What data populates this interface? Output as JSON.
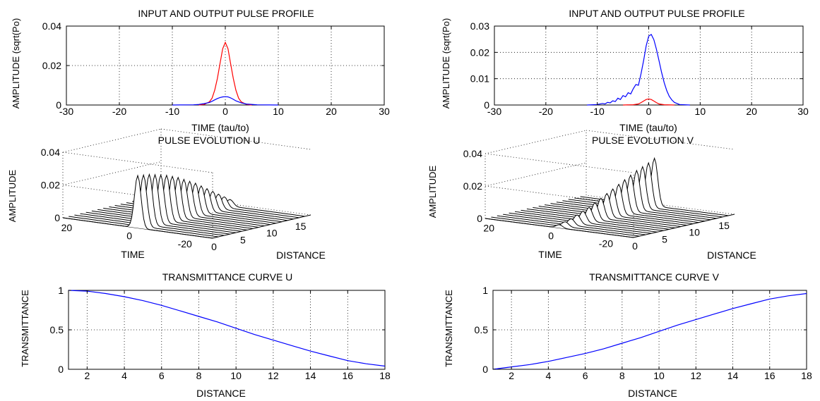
{
  "chart_data": [
    {
      "type": "line",
      "title": "INPUT AND OUTPUT PULSE PROFILE",
      "xlabel": "TIME (tau/to)",
      "ylabel": "AMPLITUDE (sqrt(Po)",
      "xlim": [
        -30,
        30
      ],
      "ylim": [
        0,
        0.04
      ],
      "xticks": [
        -30,
        -20,
        -10,
        0,
        10,
        20,
        30
      ],
      "xtick_labels": [
        "-30",
        "-20",
        "-10",
        "0",
        "10",
        "20",
        "30"
      ],
      "yticks": [
        0,
        0.02,
        0.04
      ],
      "ytick_labels": [
        "0",
        "0.02",
        "0.04"
      ],
      "grid": true,
      "series": [
        {
          "color": "#ff0000",
          "x": [
            -5,
            -4,
            -3,
            -2.5,
            -2,
            -1.5,
            -1,
            -0.5,
            0,
            0.5,
            1,
            1.5,
            2,
            2.5,
            3,
            4,
            5
          ],
          "values": [
            0,
            0.0003,
            0.0016,
            0.0035,
            0.0075,
            0.0135,
            0.021,
            0.0285,
            0.0317,
            0.0285,
            0.021,
            0.0135,
            0.0075,
            0.0035,
            0.0016,
            0.0003,
            0
          ]
        },
        {
          "color": "#0000ff",
          "x": [
            -10,
            -6,
            -5,
            -4,
            -3,
            -2.5,
            -2,
            -1.5,
            -1,
            -0.5,
            0,
            0.5,
            1,
            1.5,
            2,
            3,
            4,
            6,
            10
          ],
          "values": [
            0,
            0.0001,
            0.0003,
            0.0007,
            0.0013,
            0.0019,
            0.0026,
            0.0033,
            0.0038,
            0.0041,
            0.0042,
            0.0041,
            0.0036,
            0.0029,
            0.0021,
            0.0011,
            0.0005,
            0.0001,
            0
          ]
        }
      ]
    },
    {
      "type": "line",
      "title": "INPUT AND OUTPUT PULSE PROFILE",
      "xlabel": "TIME (tau/to)",
      "ylabel": "AMPLITUDE (sqrt(Po)",
      "xlim": [
        -30,
        30
      ],
      "ylim": [
        0,
        0.03
      ],
      "xticks": [
        -30,
        -20,
        -10,
        0,
        10,
        20,
        30
      ],
      "xtick_labels": [
        "-30",
        "-20",
        "-10",
        "0",
        "10",
        "20",
        "30"
      ],
      "yticks": [
        0,
        0.01,
        0.02,
        0.03
      ],
      "ytick_labels": [
        "0",
        "0.01",
        "0.02",
        "0.03"
      ],
      "grid": true,
      "series": [
        {
          "color": "#ff0000",
          "x": [
            -5,
            -3,
            -2,
            -1.5,
            -1,
            -0.5,
            0,
            0.5,
            1,
            1.5,
            2,
            3,
            5
          ],
          "values": [
            0,
            0.0001,
            0.0004,
            0.0009,
            0.0015,
            0.0021,
            0.0023,
            0.0021,
            0.0015,
            0.0009,
            0.0004,
            0.0001,
            0
          ]
        },
        {
          "color": "#0000ff",
          "x": [
            -12,
            -10,
            -9,
            -8.5,
            -8,
            -7.5,
            -7,
            -6.5,
            -6,
            -5.5,
            -5,
            -4.5,
            -4,
            -3.5,
            -3,
            -2.5,
            -2,
            -1.5,
            -1,
            -0.5,
            0,
            0.5,
            1,
            1.5,
            2,
            2.5,
            3,
            3.5,
            4,
            4.5,
            5,
            6,
            8
          ],
          "values": [
            0,
            0.0002,
            0.0006,
            0.0004,
            0.001,
            0.0008,
            0.0016,
            0.0013,
            0.0026,
            0.0021,
            0.0036,
            0.0031,
            0.0047,
            0.0042,
            0.0062,
            0.0078,
            0.0075,
            0.0119,
            0.0168,
            0.0225,
            0.0262,
            0.0268,
            0.0248,
            0.0212,
            0.0168,
            0.0124,
            0.0085,
            0.0055,
            0.0033,
            0.0019,
            0.001,
            0.0002,
            0
          ]
        }
      ]
    },
    {
      "type": "waterfall3d",
      "title": "PULSE EVOLUTION U",
      "xlabel": "TIME",
      "ylabel": "DISTANCE",
      "zlabel": "AMPLITUDE",
      "time_ticks": [
        "20",
        "0",
        "-20"
      ],
      "distance_ticks": [
        "0",
        "5",
        "10",
        "15"
      ],
      "zticks": [
        "0",
        "0.02",
        "0.04"
      ],
      "distances": [
        0,
        1,
        2,
        3,
        4,
        5,
        6,
        7,
        8,
        9,
        10,
        11,
        12,
        13,
        14,
        15,
        16
      ],
      "peak_amplitudes": [
        0.032,
        0.0315,
        0.031,
        0.03,
        0.029,
        0.028,
        0.0265,
        0.025,
        0.023,
        0.021,
        0.019,
        0.0165,
        0.014,
        0.0115,
        0.009,
        0.0065,
        0.004
      ]
    },
    {
      "type": "waterfall3d",
      "title": "PULSE EVOLUTION V",
      "xlabel": "TIME",
      "ylabel": "DISTANCE",
      "zlabel": "AMPLITUDE",
      "time_ticks": [
        "20",
        "0",
        "-20"
      ],
      "distance_ticks": [
        "0",
        "5",
        "10",
        "15"
      ],
      "zticks": [
        "0",
        "0.02",
        "0.04"
      ],
      "distances": [
        0,
        1,
        2,
        3,
        4,
        5,
        6,
        7,
        8,
        9,
        10,
        11,
        12,
        13,
        14,
        15,
        16
      ],
      "peak_amplitudes": [
        0.002,
        0.003,
        0.004,
        0.0055,
        0.007,
        0.0085,
        0.0105,
        0.0125,
        0.0145,
        0.0165,
        0.0185,
        0.0205,
        0.0225,
        0.0245,
        0.026,
        0.0275,
        0.0295
      ]
    },
    {
      "type": "line",
      "title": "TRANSMITTANCE CURVE U",
      "xlabel": "DISTANCE",
      "ylabel": "TRANSMITTANCE",
      "xlim": [
        1,
        18
      ],
      "ylim": [
        0,
        1
      ],
      "xticks": [
        2,
        4,
        6,
        8,
        10,
        12,
        14,
        16,
        18
      ],
      "xtick_labels": [
        "2",
        "4",
        "6",
        "8",
        "10",
        "12",
        "14",
        "16",
        "18"
      ],
      "yticks": [
        0,
        0.5,
        1
      ],
      "ytick_labels": [
        "0",
        "0.5",
        "1"
      ],
      "grid": true,
      "series": [
        {
          "color": "#0000ff",
          "x": [
            1,
            2,
            3,
            4,
            5,
            6,
            7,
            8,
            9,
            10,
            11,
            12,
            13,
            14,
            15,
            16,
            17,
            18
          ],
          "values": [
            1.0,
            0.99,
            0.96,
            0.92,
            0.87,
            0.81,
            0.74,
            0.67,
            0.6,
            0.52,
            0.44,
            0.37,
            0.3,
            0.23,
            0.17,
            0.11,
            0.07,
            0.04
          ]
        }
      ]
    },
    {
      "type": "line",
      "title": "TRANSMITTANCE CURVE V",
      "xlabel": "DISTANCE",
      "ylabel": "TRANSMITTANCE",
      "xlim": [
        1,
        18
      ],
      "ylim": [
        0,
        1
      ],
      "xticks": [
        2,
        4,
        6,
        8,
        10,
        12,
        14,
        16,
        18
      ],
      "xtick_labels": [
        "2",
        "4",
        "6",
        "8",
        "10",
        "12",
        "14",
        "16",
        "18"
      ],
      "yticks": [
        0,
        0.5,
        1
      ],
      "ytick_labels": [
        "0",
        "0.5",
        "1"
      ],
      "grid": true,
      "series": [
        {
          "color": "#0000ff",
          "x": [
            1,
            2,
            3,
            4,
            5,
            6,
            7,
            8,
            9,
            10,
            11,
            12,
            13,
            14,
            15,
            16,
            17,
            18
          ],
          "values": [
            0.0,
            0.03,
            0.06,
            0.1,
            0.15,
            0.2,
            0.26,
            0.33,
            0.4,
            0.48,
            0.56,
            0.63,
            0.7,
            0.77,
            0.83,
            0.89,
            0.93,
            0.96
          ]
        }
      ]
    }
  ]
}
